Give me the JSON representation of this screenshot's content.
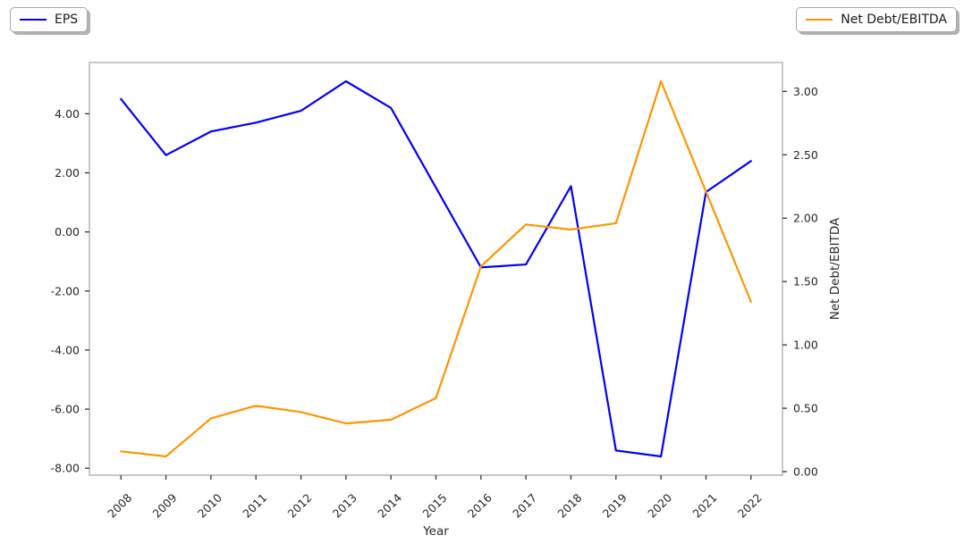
{
  "figure": {
    "background": "#ffffff"
  },
  "legend_left": {
    "label": "EPS",
    "color": "#0000ff"
  },
  "legend_right": {
    "label": "Net Debt/EBITDA",
    "color": "#ff9500"
  },
  "chart_data": {
    "type": "line",
    "x": [
      "2008",
      "2009",
      "2010",
      "2011",
      "2012",
      "2013",
      "2014",
      "2015",
      "2016",
      "2017",
      "2018",
      "2019",
      "2020",
      "2021",
      "2022"
    ],
    "xlabel": "Year",
    "grid": false,
    "legend_positions": [
      "outside upper-left",
      "outside upper-right"
    ],
    "series": [
      {
        "name": "EPS",
        "axis": "left",
        "color": "#0000ff",
        "values": [
          4.5,
          2.6,
          3.4,
          3.7,
          4.1,
          5.1,
          4.2,
          1.5,
          -1.2,
          -1.1,
          1.55,
          -7.4,
          -7.6,
          1.35,
          2.4
        ]
      },
      {
        "name": "Net Debt/EBITDA",
        "axis": "right",
        "color": "#ff9500",
        "values": [
          0.16,
          0.12,
          0.42,
          0.52,
          0.47,
          0.38,
          0.41,
          0.58,
          1.62,
          1.95,
          1.91,
          1.96,
          3.08,
          2.21,
          1.34
        ]
      }
    ],
    "left_axis": {
      "label": "",
      "ticks": [
        4,
        2,
        0,
        -2,
        -4,
        -6,
        -8
      ],
      "ylim": [
        -8.235,
        5.735
      ],
      "tick_labels": [
        "4.00",
        "2.00",
        "0.00",
        "-2.00",
        "-4.00",
        "-6.00",
        "-8.00"
      ]
    },
    "right_axis": {
      "label": "Net Debt/EBITDA",
      "ticks": [
        3,
        2.5,
        2,
        1.5,
        1,
        0.5,
        0
      ],
      "ylim": [
        -0.028,
        3.228
      ],
      "tick_labels": [
        "3.00",
        "2.50",
        "2.00",
        "1.50",
        "1.00",
        "0.50",
        "0.00"
      ]
    }
  }
}
